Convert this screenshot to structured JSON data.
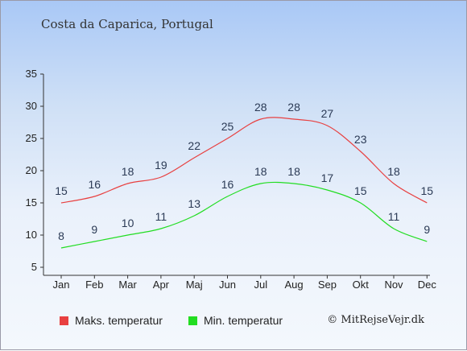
{
  "title": "Costa da Caparica, Portugal",
  "credit": "© MitRejseVejr.dk",
  "chart_data": {
    "type": "line",
    "categories": [
      "Jan",
      "Feb",
      "Mar",
      "Apr",
      "Maj",
      "Jun",
      "Jul",
      "Aug",
      "Sep",
      "Okt",
      "Nov",
      "Dec"
    ],
    "series": [
      {
        "name": "Maks. temperatur",
        "color": "#e84040",
        "values": [
          15,
          16,
          18,
          19,
          22,
          25,
          28,
          28,
          27,
          23,
          18,
          15
        ]
      },
      {
        "name": "Min. temperatur",
        "color": "#22dd22",
        "values": [
          8,
          9,
          10,
          11,
          13,
          16,
          18,
          18,
          17,
          15,
          11,
          9
        ]
      }
    ],
    "ylim": [
      5,
      35
    ],
    "yticks": [
      5,
      10,
      15,
      20,
      25,
      30,
      35
    ],
    "grid": false,
    "legend": "bottom"
  }
}
